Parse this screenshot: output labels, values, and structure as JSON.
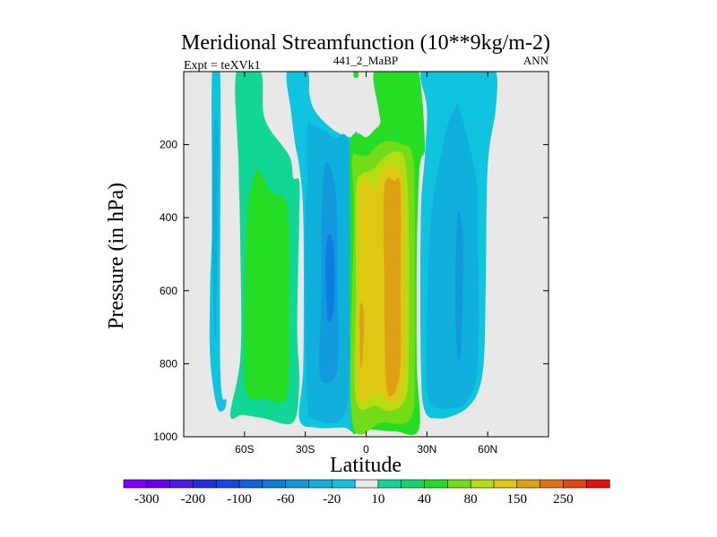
{
  "chart_data": {
    "type": "heatmap",
    "title": "Meridional Streamfunction (10**9kg/m-2)",
    "left_string": "Expt = teXVk1",
    "center_string": "441_2_MaBP",
    "right_string": "ANN",
    "xlabel": "Latitude",
    "ylabel": "Pressure (in hPa)",
    "xlim": [
      -90,
      90
    ],
    "ylim": [
      1000,
      0
    ],
    "x_ticks": [
      {
        "value": -60,
        "label": "60S"
      },
      {
        "value": -30,
        "label": "30S"
      },
      {
        "value": 0,
        "label": "0"
      },
      {
        "value": 30,
        "label": "30N"
      },
      {
        "value": 60,
        "label": "60N"
      }
    ],
    "y_ticks": [
      {
        "value": 200,
        "label": "200"
      },
      {
        "value": 400,
        "label": "400"
      },
      {
        "value": 600,
        "label": "600"
      },
      {
        "value": 800,
        "label": "800"
      },
      {
        "value": 1000,
        "label": "1000"
      }
    ],
    "background_color": "#e8e8e8",
    "colorbar": {
      "levels": [
        -300,
        -250,
        -200,
        -150,
        -100,
        -80,
        -60,
        -40,
        -20,
        -10,
        10,
        20,
        40,
        60,
        80,
        100,
        150,
        200,
        250,
        300
      ],
      "tick_labels": [
        "-300",
        "-200",
        "-100",
        "-60",
        "-20",
        "10",
        "40",
        "80",
        "150",
        "250"
      ],
      "tick_after_box": [
        0,
        2,
        4,
        6,
        8,
        10,
        12,
        14,
        16,
        18
      ],
      "colors": [
        "#8000ff",
        "#6a00ee",
        "#4b1be8",
        "#2030e0",
        "#1448e0",
        "#1060e0",
        "#0f7ddd",
        "#1198dd",
        "#10b0dd",
        "#10c4e0",
        "#e8e8e8",
        "#12d696",
        "#16d66a",
        "#24dd24",
        "#73dc19",
        "#b6dc14",
        "#ddc814",
        "#dea014",
        "#e07312",
        "#e04810",
        "#e01010"
      ]
    },
    "contour_regions": [
      {
        "name": "south-polar-cell-outer",
        "color": "#10c4e0",
        "boundary": [
          [
            -76,
            0
          ],
          [
            -72,
            0
          ],
          [
            -72,
            800
          ],
          [
            -69,
            900
          ],
          [
            -71,
            930
          ],
          [
            -74,
            910
          ],
          [
            -77,
            780
          ],
          [
            -77,
            600
          ],
          [
            -76,
            400
          ]
        ]
      },
      {
        "name": "south-polar-cell-inner",
        "color": "#10b0dd",
        "boundary": [
          [
            -75,
            150
          ],
          [
            -73,
            150
          ],
          [
            -73,
            300
          ],
          [
            -74,
            700
          ],
          [
            -75,
            700
          ],
          [
            -76,
            400
          ]
        ]
      },
      {
        "name": "south-ferrel-cell-outer",
        "color": "#12d696",
        "boundary": [
          [
            -64,
            0
          ],
          [
            -52,
            0
          ],
          [
            -50,
            130
          ],
          [
            -38,
            230
          ],
          [
            -36,
            290
          ],
          [
            -33,
            300
          ],
          [
            -33,
            400
          ],
          [
            -34,
            700
          ],
          [
            -33,
            850
          ],
          [
            -36,
            960
          ],
          [
            -50,
            950
          ],
          [
            -61,
            940
          ],
          [
            -67,
            940
          ],
          [
            -62,
            780
          ],
          [
            -62,
            500
          ],
          [
            -63,
            250
          ]
        ]
      },
      {
        "name": "south-ferrel-cell-inner",
        "color": "#24dd24",
        "boundary": [
          [
            -53,
            270
          ],
          [
            -47,
            330
          ],
          [
            -40,
            350
          ],
          [
            -38,
            450
          ],
          [
            -38,
            700
          ],
          [
            -38,
            800
          ],
          [
            -40,
            900
          ],
          [
            -50,
            895
          ],
          [
            -59,
            880
          ],
          [
            -60,
            700
          ],
          [
            -59,
            400
          ],
          [
            -56,
            300
          ]
        ]
      },
      {
        "name": "hadley-south-outer",
        "color": "#10c4e0",
        "boundary": [
          [
            -39,
            0
          ],
          [
            -29,
            0
          ],
          [
            -28,
            60
          ],
          [
            -25,
            110
          ],
          [
            -16,
            160
          ],
          [
            -8,
            180
          ],
          [
            -4,
            180
          ],
          [
            -4,
            400
          ],
          [
            -4,
            800
          ],
          [
            -4,
            980
          ],
          [
            -11,
            975
          ],
          [
            -25,
            975
          ],
          [
            -33,
            950
          ],
          [
            -31,
            800
          ],
          [
            -31,
            400
          ],
          [
            -33,
            260
          ],
          [
            -35,
            200
          ],
          [
            -37,
            110
          ]
        ]
      },
      {
        "name": "hadley-south-mid",
        "color": "#10b0dd",
        "boundary": [
          [
            -29,
            150
          ],
          [
            -25,
            150
          ],
          [
            -16,
            180
          ],
          [
            -8,
            230
          ],
          [
            -8,
            800
          ],
          [
            -12,
            950
          ],
          [
            -26,
            950
          ],
          [
            -29,
            900
          ],
          [
            -30,
            600
          ],
          [
            -30,
            400
          ],
          [
            -29,
            300
          ]
        ]
      },
      {
        "name": "hadley-south-core",
        "color": "#1198dd",
        "boundary": [
          [
            -20,
            250
          ],
          [
            -15,
            330
          ],
          [
            -14,
            600
          ],
          [
            -14,
            800
          ],
          [
            -18,
            850
          ],
          [
            -23,
            820
          ],
          [
            -22,
            600
          ],
          [
            -22,
            400
          ]
        ]
      },
      {
        "name": "hadley-south-peak",
        "color": "#0f7ddd",
        "boundary": [
          [
            -19,
            450
          ],
          [
            -16,
            480
          ],
          [
            -16,
            650
          ],
          [
            -19,
            680
          ],
          [
            -20,
            550
          ]
        ]
      },
      {
        "name": "hadley-north-outer",
        "color": "#24dd24",
        "boundary": [
          [
            4,
            0
          ],
          [
            16,
            0
          ],
          [
            20,
            0
          ],
          [
            26,
            0
          ],
          [
            29,
            200
          ],
          [
            27,
            240
          ],
          [
            26,
            300
          ],
          [
            25,
            500
          ],
          [
            25,
            800
          ],
          [
            26,
            980
          ],
          [
            14,
            985
          ],
          [
            2,
            980
          ],
          [
            -3,
            980
          ],
          [
            -7,
            980
          ],
          [
            -8,
            800
          ],
          [
            -8,
            400
          ],
          [
            -8,
            200
          ],
          [
            -4,
            170
          ],
          [
            0,
            180
          ],
          [
            4,
            160
          ],
          [
            7,
            140
          ],
          [
            6,
            100
          ]
        ]
      },
      {
        "name": "hadley-north-40",
        "color": "#73dc19",
        "boundary": [
          [
            -7,
            240
          ],
          [
            -3,
            230
          ],
          [
            1,
            230
          ],
          [
            4,
            210
          ],
          [
            10,
            190
          ],
          [
            18,
            200
          ],
          [
            23,
            230
          ],
          [
            24,
            400
          ],
          [
            24,
            800
          ],
          [
            22,
            950
          ],
          [
            8,
            960
          ],
          [
            -7,
            950
          ],
          [
            -6,
            400
          ]
        ]
      },
      {
        "name": "hadley-north-60",
        "color": "#b6dc14",
        "boundary": [
          [
            -5,
            330
          ],
          [
            -2,
            280
          ],
          [
            3,
            270
          ],
          [
            8,
            240
          ],
          [
            14,
            220
          ],
          [
            19,
            240
          ],
          [
            21,
            400
          ],
          [
            21,
            800
          ],
          [
            19,
            900
          ],
          [
            12,
            930
          ],
          [
            5,
            915
          ],
          [
            -5,
            900
          ],
          [
            -5,
            600
          ]
        ]
      },
      {
        "name": "hadley-north-80",
        "color": "#ddc814",
        "boundary": [
          [
            -4,
            350
          ],
          [
            -1,
            290
          ],
          [
            4,
            320
          ],
          [
            8,
            270
          ],
          [
            14,
            260
          ],
          [
            18,
            310
          ],
          [
            19,
            500
          ],
          [
            19,
            800
          ],
          [
            16,
            900
          ],
          [
            10,
            900
          ],
          [
            5,
            880
          ],
          [
            0,
            900
          ],
          [
            -4,
            880
          ],
          [
            -4,
            600
          ]
        ]
      },
      {
        "name": "hadley-north-100",
        "color": "#dea014",
        "boundary": [
          [
            9,
            320
          ],
          [
            14,
            300
          ],
          [
            17,
            320
          ],
          [
            17,
            600
          ],
          [
            17,
            800
          ],
          [
            14,
            880
          ],
          [
            10,
            860
          ],
          [
            9,
            600
          ]
        ]
      },
      {
        "name": "hadley-north-100b",
        "color": "#dea014",
        "boundary": [
          [
            -3,
            640
          ],
          [
            -1,
            670
          ],
          [
            -2,
            800
          ],
          [
            -3,
            790
          ]
        ]
      },
      {
        "name": "north-ferrel-cell",
        "color": "#10c4e0",
        "boundary": [
          [
            27,
            0
          ],
          [
            39,
            0
          ],
          [
            44,
            0
          ],
          [
            52,
            0
          ],
          [
            56,
            0
          ],
          [
            64,
            0
          ],
          [
            64,
            100
          ],
          [
            60,
            260
          ],
          [
            59,
            600
          ],
          [
            58,
            800
          ],
          [
            55,
            880
          ],
          [
            50,
            920
          ],
          [
            44,
            940
          ],
          [
            36,
            950
          ],
          [
            29,
            930
          ],
          [
            27,
            800
          ],
          [
            27,
            400
          ],
          [
            29,
            230
          ],
          [
            30,
            100
          ]
        ]
      },
      {
        "name": "north-ferrel-core",
        "color": "#10b0dd",
        "boundary": [
          [
            44,
            100
          ],
          [
            46,
            100
          ],
          [
            54,
            280
          ],
          [
            55,
            400
          ],
          [
            55,
            800
          ],
          [
            50,
            900
          ],
          [
            43,
            920
          ],
          [
            31,
            900
          ],
          [
            30,
            700
          ],
          [
            32,
            400
          ],
          [
            38,
            200
          ],
          [
            40,
            150
          ]
        ]
      },
      {
        "name": "north-ferrel-peak",
        "color": "#1198dd",
        "boundary": [
          [
            45,
            400
          ],
          [
            47,
            410
          ],
          [
            48,
            500
          ],
          [
            47,
            750
          ],
          [
            45,
            780
          ],
          [
            44,
            600
          ]
        ]
      },
      {
        "name": "equator-top-sliver",
        "color": "#24dd24",
        "boundary": [
          [
            -6,
            0
          ],
          [
            -4,
            0
          ],
          [
            -4,
            15
          ],
          [
            -6,
            15
          ]
        ]
      }
    ]
  }
}
